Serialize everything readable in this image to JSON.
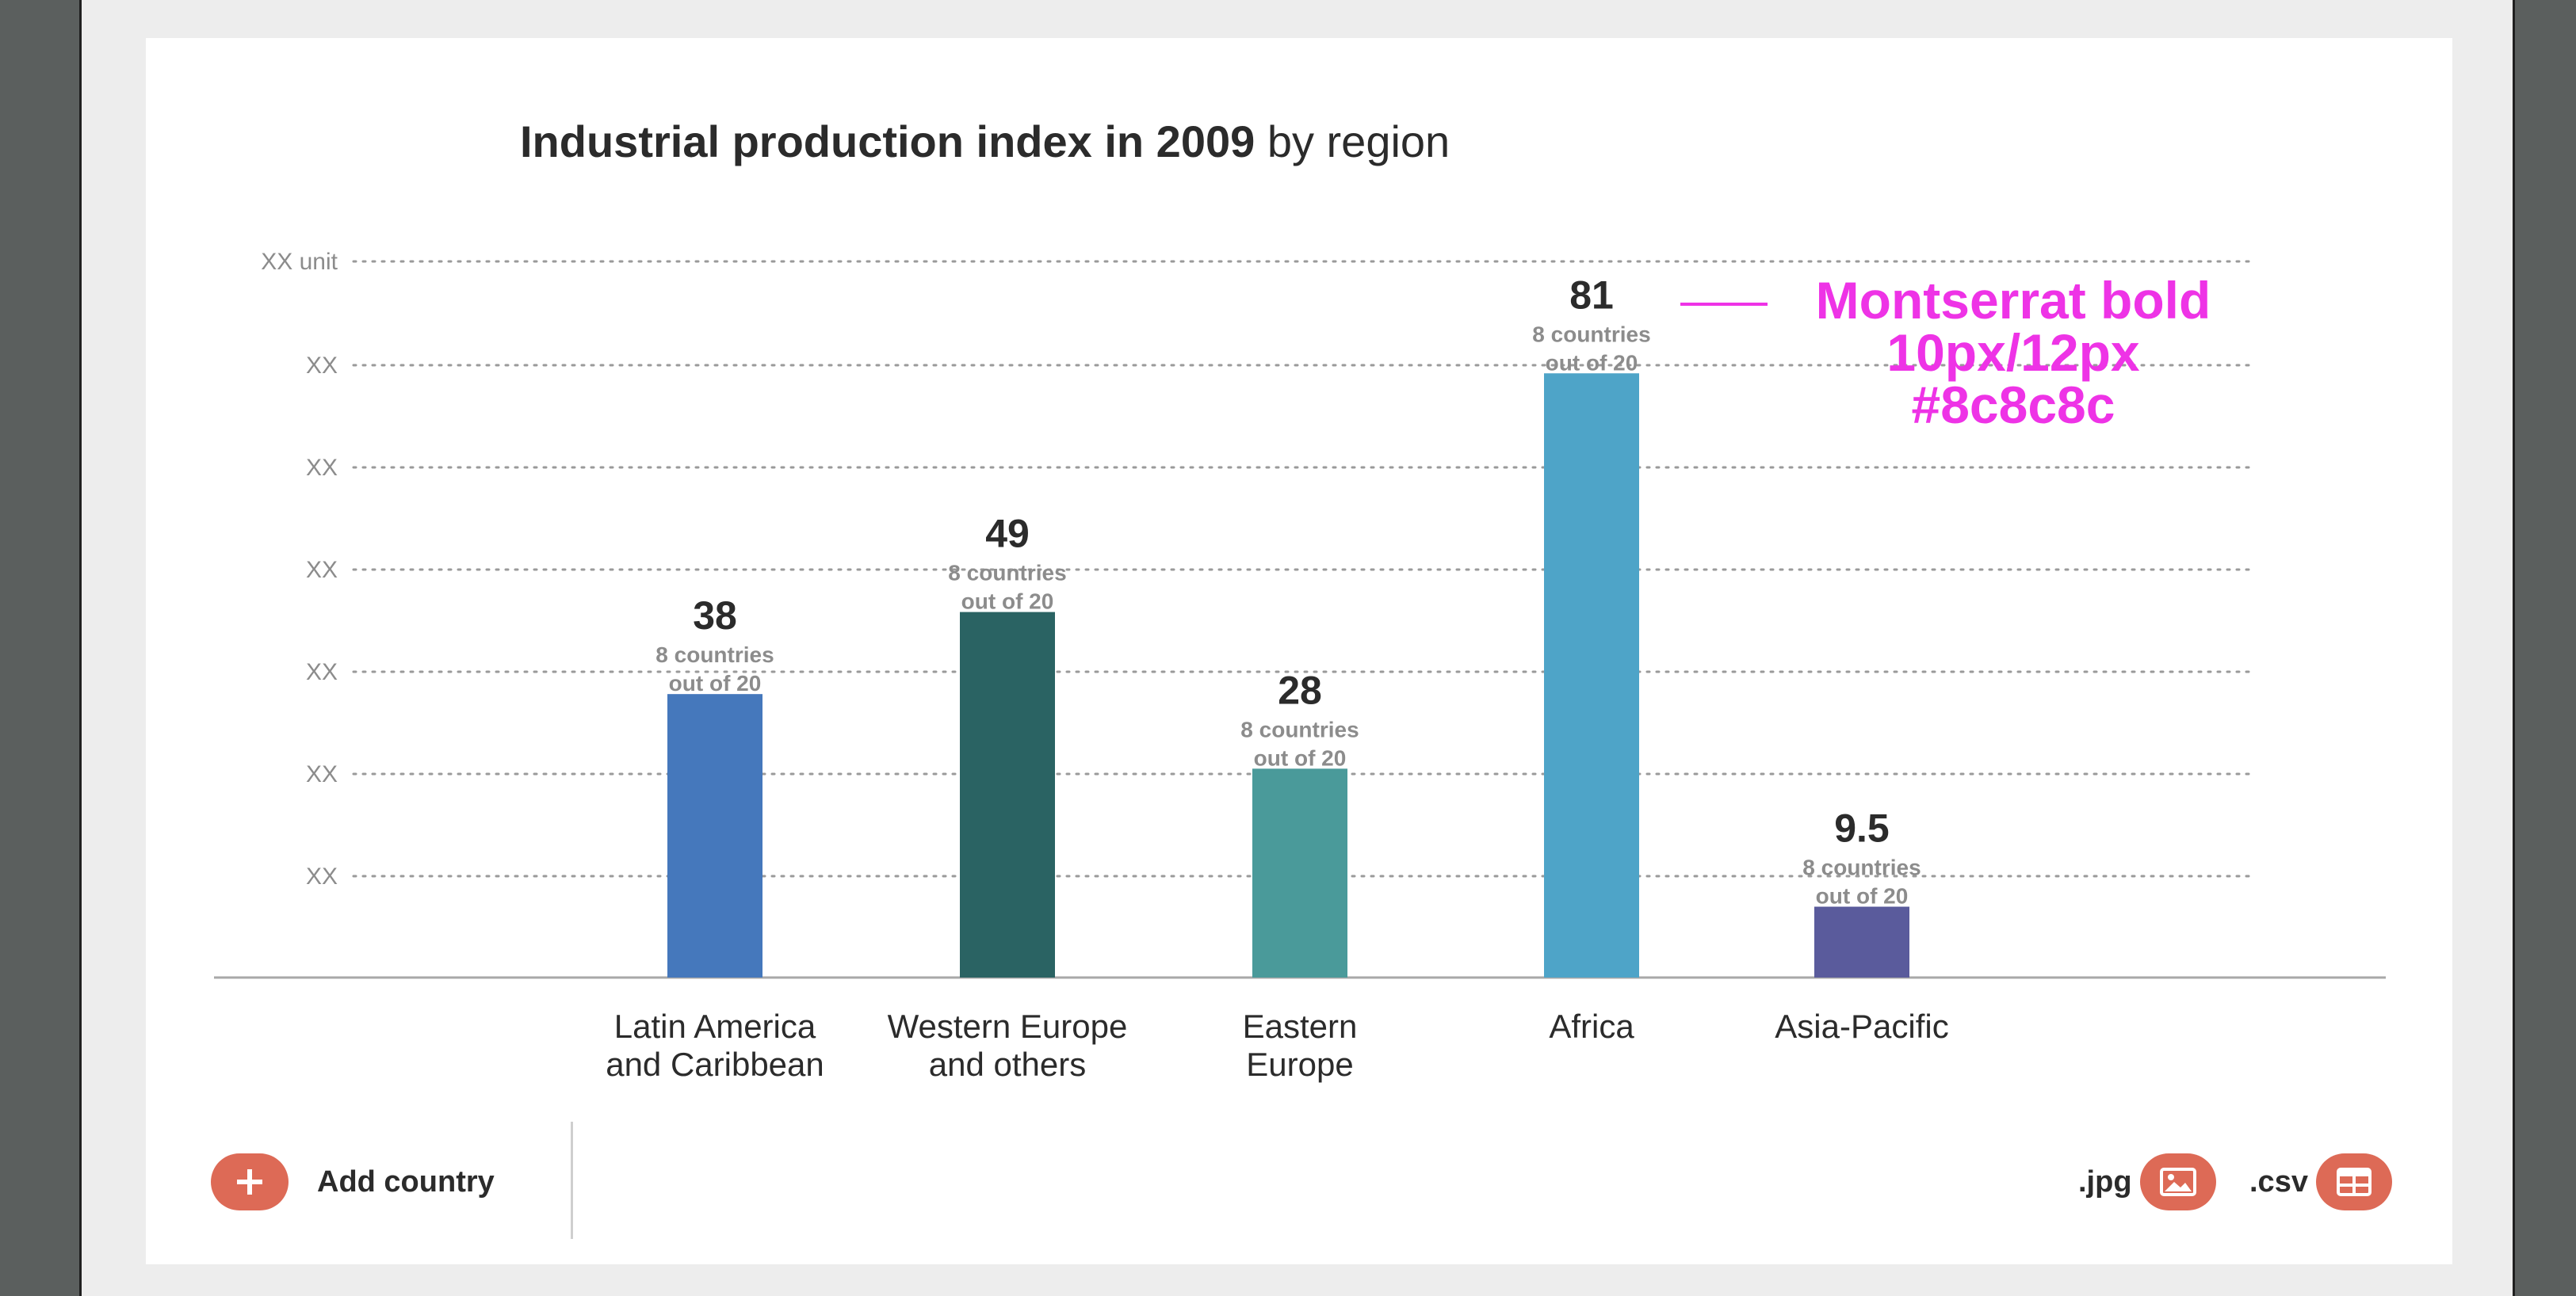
{
  "chart_data": {
    "type": "bar",
    "title": "Industrial production index in 2009",
    "subtitle": "by region",
    "xlabel": "",
    "ylabel": "XX unit",
    "y_tick_labels": [
      "XX",
      "XX",
      "XX",
      "XX",
      "XX",
      "XX",
      "XX unit"
    ],
    "ylim": [
      0,
      96
    ],
    "grid": true,
    "categories": [
      [
        "Latin America",
        "and Caribbean"
      ],
      [
        "Western Europe",
        "and others"
      ],
      [
        "Eastern",
        "Europe"
      ],
      [
        "Africa"
      ],
      [
        "Asia-Pacific"
      ]
    ],
    "values": [
      38,
      49,
      28,
      81,
      9.5
    ],
    "value_labels": [
      "38",
      "49",
      "28",
      "81",
      "9.5"
    ],
    "sub_labels": [
      [
        "8 countries",
        "out of 20"
      ],
      [
        "8 countries",
        "out of 20"
      ],
      [
        "8 countries",
        "out of 20"
      ],
      [
        "8 countries",
        "out of 20"
      ],
      [
        "8 countries",
        "out of 20"
      ]
    ],
    "colors": [
      "#4578bc",
      "#2a6363",
      "#4a9a9a",
      "#4ea4c8",
      "#5a5b9c"
    ]
  },
  "annotation": {
    "lines": [
      "Montserrat bold",
      "10px/12px",
      "#8c8c8c"
    ],
    "color": "#ee33e6"
  },
  "controls": {
    "add_label": "Add country",
    "add_icon": "plus-icon",
    "jpg_label": ".jpg",
    "jpg_icon": "image-icon",
    "csv_label": ".csv",
    "csv_icon": "table-icon",
    "button_color": "#dd6a56"
  }
}
